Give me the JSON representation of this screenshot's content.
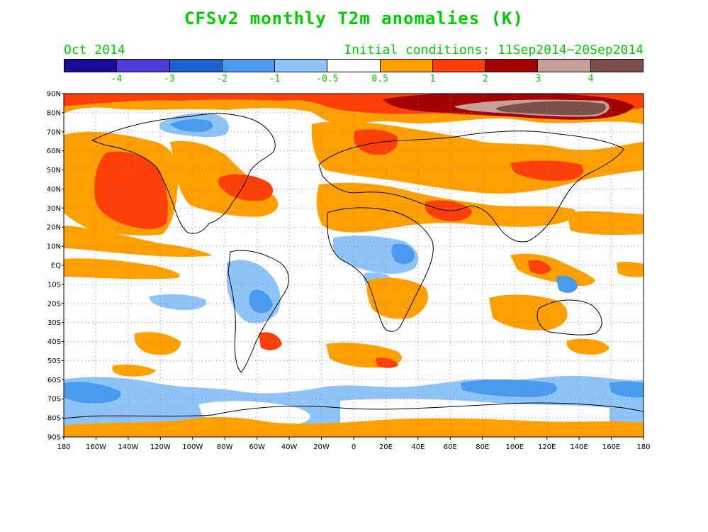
{
  "title": "CFSv2 monthly T2m anomalies (K)",
  "period_label": "Oct 2014",
  "initial_conditions": "Initial conditions: 11Sep2014−20Sep2014",
  "colorbar": {
    "colors": [
      "#1a0a9a",
      "#4a3dd6",
      "#1e5fcf",
      "#4a9bf0",
      "#8ec4f7",
      "#ffffff",
      "#ffa000",
      "#ff3f08",
      "#a30000",
      "#c8a098",
      "#7a5048"
    ],
    "labels": [
      "-4",
      "-3",
      "-2",
      "-1",
      "-0.5",
      "0.5",
      "1",
      "2",
      "3",
      "4"
    ]
  },
  "lat_labels": [
    "90N",
    "80N",
    "70N",
    "60N",
    "50N",
    "40N",
    "30N",
    "20N",
    "10N",
    "EQ",
    "10S",
    "20S",
    "30S",
    "40S",
    "50S",
    "60S",
    "70S",
    "80S",
    "90S"
  ],
  "lon_labels": [
    "180",
    "160W",
    "140W",
    "120W",
    "100W",
    "80W",
    "60W",
    "40W",
    "20W",
    "0",
    "20E",
    "40E",
    "60E",
    "80E",
    "100E",
    "120E",
    "140E",
    "160E",
    "180"
  ]
}
